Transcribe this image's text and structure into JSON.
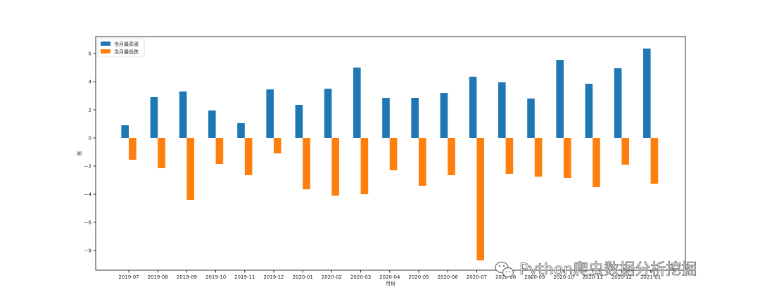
{
  "chart_data": {
    "type": "bar",
    "xlabel": "月份",
    "ylabel": "涨",
    "ylim": [
      -9.4,
      7.2
    ],
    "yticks": [
      6,
      4,
      2,
      0,
      -2,
      -4,
      -6,
      -8
    ],
    "ytick_labels": [
      "6",
      "4",
      "2",
      "0",
      "−2",
      "−4",
      "−6",
      "−8"
    ],
    "categories": [
      "2019-07",
      "2019-08",
      "2019-09",
      "2019-10",
      "2019-11",
      "2019-12",
      "2020-01",
      "2020-02",
      "2020-03",
      "2020-04",
      "2020-05",
      "2020-06",
      "2020-07",
      "2020-08",
      "2020-09",
      "2020-10",
      "2020-11",
      "2020-12",
      "2021-01"
    ],
    "series": [
      {
        "name": "当月最高涨",
        "color": "#1f77b4",
        "values": [
          0.9,
          2.9,
          3.3,
          1.95,
          1.05,
          3.45,
          2.35,
          3.5,
          5.0,
          2.85,
          2.85,
          3.2,
          4.35,
          3.95,
          2.8,
          5.55,
          3.85,
          4.95,
          6.35
        ]
      },
      {
        "name": "当月最低跌",
        "color": "#ff7f0e",
        "values": [
          -1.55,
          -2.15,
          -4.4,
          -1.85,
          -2.65,
          -1.1,
          -3.65,
          -4.1,
          -4.0,
          -2.3,
          -3.4,
          -2.65,
          -8.7,
          -2.55,
          -2.75,
          -2.85,
          -3.5,
          -1.9,
          -3.25
        ]
      }
    ],
    "legend_position": "top-left",
    "grid": false
  },
  "watermark": {
    "text": "Python爬虫数据分析挖掘",
    "icon": "wechat-icon"
  }
}
